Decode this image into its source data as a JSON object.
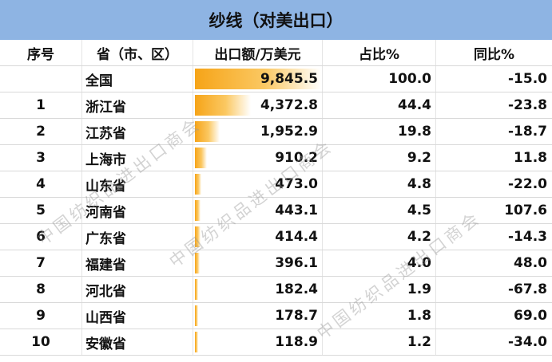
{
  "title": "纱线（对美出口）",
  "headers": [
    "序号",
    "省（市、区）",
    "出口额/万美元",
    "占比%",
    "同比%"
  ],
  "rows": [
    {
      "rank": "",
      "region": "全国",
      "export": "9,845.5",
      "share": "100.0",
      "yoy": "-15.0",
      "export_value": 9845.5
    },
    {
      "rank": "1",
      "region": "浙江省",
      "export": "4,372.8",
      "share": "44.4",
      "yoy": "-23.8",
      "export_value": 4372.8
    },
    {
      "rank": "2",
      "region": "江苏省",
      "export": "1,952.9",
      "share": "19.8",
      "yoy": "-18.7",
      "export_value": 1952.9
    },
    {
      "rank": "3",
      "region": "上海市",
      "export": "910.2",
      "share": "9.2",
      "yoy": "11.8",
      "export_value": 910.2
    },
    {
      "rank": "4",
      "region": "山东省",
      "export": "473.0",
      "share": "4.8",
      "yoy": "-22.0",
      "export_value": 473.0
    },
    {
      "rank": "5",
      "region": "河南省",
      "export": "443.1",
      "share": "4.5",
      "yoy": "107.6",
      "export_value": 443.1
    },
    {
      "rank": "6",
      "region": "广东省",
      "export": "414.4",
      "share": "4.2",
      "yoy": "-14.3",
      "export_value": 414.4
    },
    {
      "rank": "7",
      "region": "福建省",
      "export": "396.1",
      "share": "4.0",
      "yoy": "48.0",
      "export_value": 396.1
    },
    {
      "rank": "8",
      "region": "河北省",
      "export": "182.4",
      "share": "1.9",
      "yoy": "-67.8",
      "export_value": 182.4
    },
    {
      "rank": "9",
      "region": "山西省",
      "export": "178.7",
      "share": "1.8",
      "yoy": "69.0",
      "export_value": 178.7
    },
    {
      "rank": "10",
      "region": "安徽省",
      "export": "118.9",
      "share": "1.2",
      "yoy": "-34.0",
      "export_value": 118.9
    }
  ],
  "watermark_text": "中国纺织品进出口商会",
  "colors": {
    "header_bg": "#8eb4e3",
    "bar": "#f6a418"
  }
}
